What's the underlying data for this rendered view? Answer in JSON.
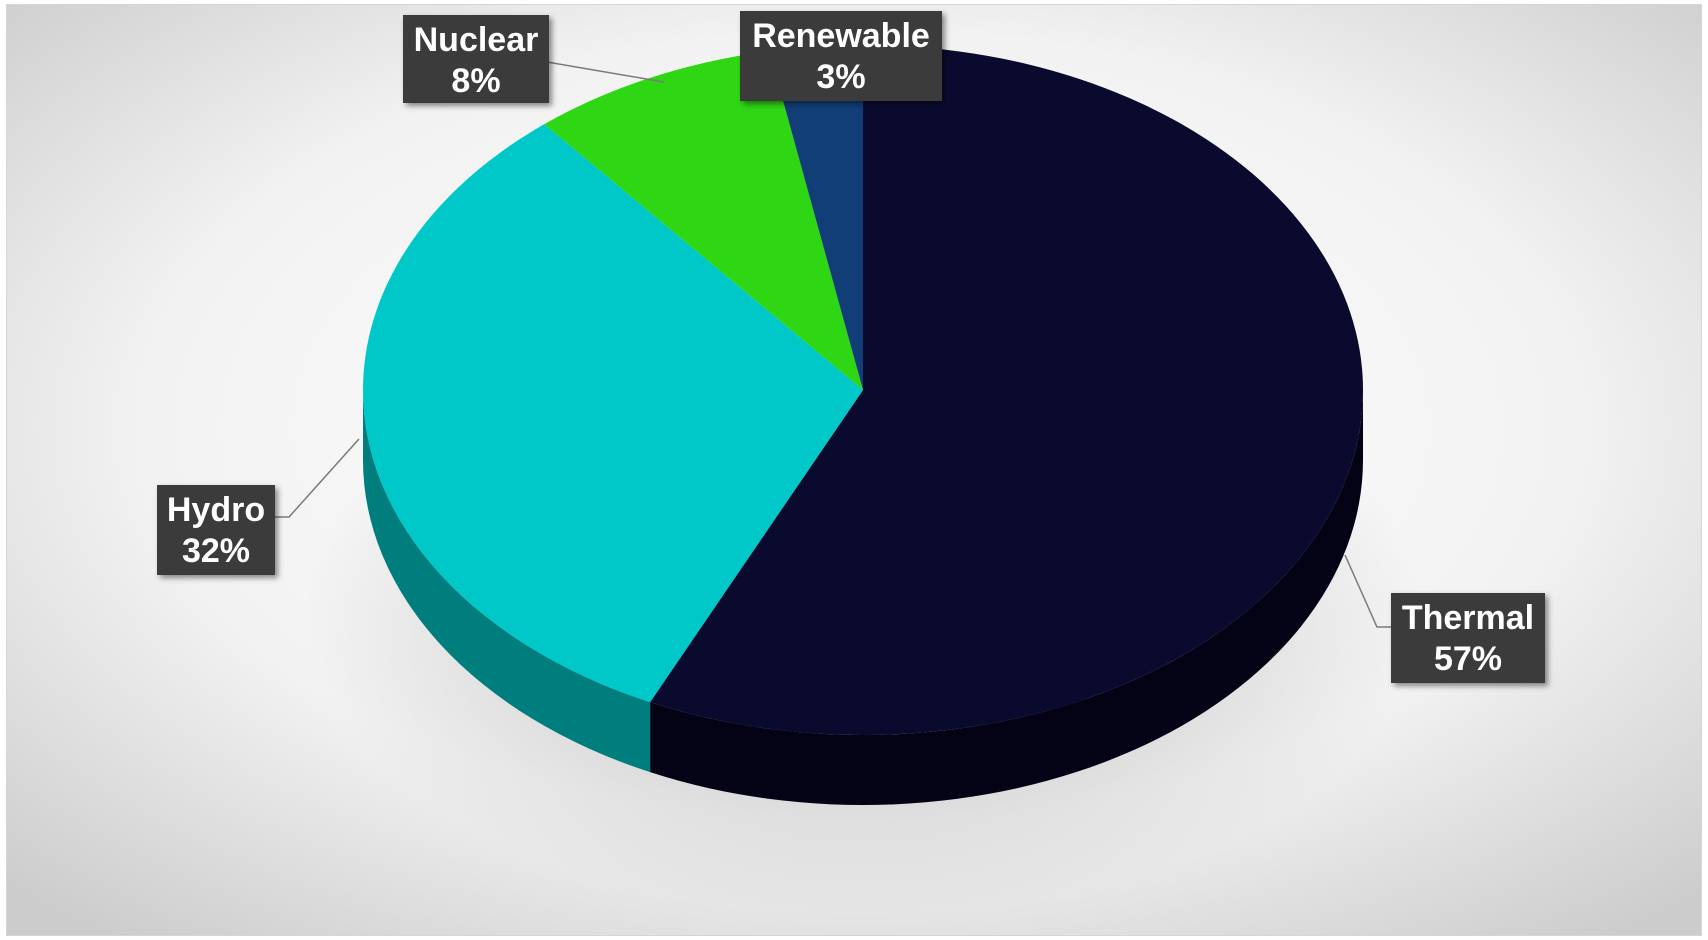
{
  "chart_data": {
    "type": "pie",
    "title": "",
    "slices": [
      {
        "name": "Thermal",
        "value": 57,
        "label": "57%",
        "color": "#0a0a2e",
        "side_color": "#030315"
      },
      {
        "name": "Hydro",
        "value": 32,
        "label": "32%",
        "color": "#00c8c8",
        "side_color": "#007d7d"
      },
      {
        "name": "Nuclear",
        "value": 8,
        "label": "8%",
        "color": "#2ed614",
        "side_color": "#1c8a0c"
      },
      {
        "name": "Renewable",
        "value": 3,
        "label": "3%",
        "color": "#123e78",
        "side_color": "#0a2447"
      }
    ],
    "style": "3d-pie",
    "data_labels": "outside",
    "legend": "none"
  },
  "colors": {
    "background_center": "#ffffff",
    "background_edge": "#cfcfcf",
    "label_box": "#3a3a3a",
    "leader_line": "#7a7a7a"
  }
}
